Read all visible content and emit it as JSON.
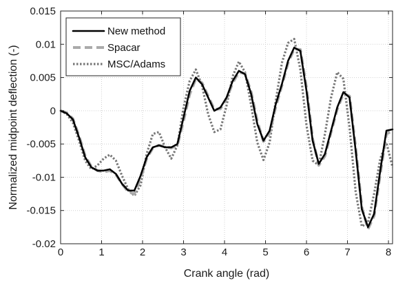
{
  "chart_data": {
    "type": "line",
    "title": "",
    "xlabel": "Crank angle (rad)",
    "ylabel": "Normalized midpoint deflection (-)",
    "xlim": [
      0,
      8.1
    ],
    "ylim": [
      -0.02,
      0.015
    ],
    "xticks": [
      0,
      1,
      2,
      3,
      4,
      5,
      6,
      7,
      8
    ],
    "xtick_labels": [
      "0",
      "1",
      "2",
      "3",
      "4",
      "5",
      "6",
      "7",
      "8"
    ],
    "yticks": [
      -0.02,
      -0.015,
      -0.01,
      -0.005,
      0,
      0.005,
      0.01,
      0.015
    ],
    "ytick_labels": [
      "-0.02",
      "-0.015",
      "-0.01",
      "-0.005",
      "0",
      "0.005",
      "0.01",
      "0.015"
    ],
    "grid": true,
    "legend_position": "top-left",
    "series": [
      {
        "name": "New method",
        "color": "#000000",
        "style": "solid",
        "x": [
          0,
          0.15,
          0.3,
          0.45,
          0.6,
          0.75,
          0.9,
          1.05,
          1.2,
          1.35,
          1.5,
          1.65,
          1.8,
          1.95,
          2.1,
          2.25,
          2.4,
          2.55,
          2.7,
          2.85,
          3.0,
          3.15,
          3.3,
          3.45,
          3.6,
          3.75,
          3.9,
          4.05,
          4.2,
          4.35,
          4.5,
          4.65,
          4.8,
          4.95,
          5.1,
          5.25,
          5.4,
          5.55,
          5.7,
          5.85,
          6.0,
          6.15,
          6.3,
          6.45,
          6.6,
          6.75,
          6.9,
          7.05,
          7.2,
          7.35,
          7.5,
          7.65,
          7.8,
          7.95,
          8.1
        ],
        "y": [
          0,
          -0.0004,
          -0.0013,
          -0.004,
          -0.007,
          -0.0085,
          -0.009,
          -0.009,
          -0.0088,
          -0.0095,
          -0.011,
          -0.012,
          -0.012,
          -0.0098,
          -0.007,
          -0.0055,
          -0.0052,
          -0.0055,
          -0.0055,
          -0.005,
          -0.001,
          0.003,
          0.005,
          0.004,
          0.002,
          0.0,
          0.0005,
          0.002,
          0.0045,
          0.006,
          0.0055,
          0.0025,
          -0.002,
          -0.0045,
          -0.003,
          0.001,
          0.004,
          0.0075,
          0.0095,
          0.009,
          0.003,
          -0.0045,
          -0.008,
          -0.0065,
          -0.003,
          0.0005,
          0.0028,
          0.002,
          -0.006,
          -0.0148,
          -0.0175,
          -0.0155,
          -0.009,
          -0.003,
          -0.0028
        ]
      },
      {
        "name": "Spacar",
        "color": "#aaaaaa",
        "style": "dashed",
        "x": [
          0,
          0.15,
          0.3,
          0.45,
          0.6,
          0.75,
          0.9,
          1.05,
          1.2,
          1.35,
          1.5,
          1.65,
          1.8,
          1.95,
          2.1,
          2.25,
          2.4,
          2.55,
          2.7,
          2.85,
          3.0,
          3.15,
          3.3,
          3.45,
          3.6,
          3.75,
          3.9,
          4.05,
          4.2,
          4.35,
          4.5,
          4.65,
          4.8,
          4.95,
          5.1,
          5.25,
          5.4,
          5.55,
          5.7,
          5.85,
          6.0,
          6.15,
          6.3,
          6.45,
          6.6,
          6.75,
          6.9,
          7.05,
          7.2,
          7.35,
          7.5,
          7.65,
          7.8,
          7.95,
          8.1
        ],
        "y": [
          0,
          -0.0003,
          -0.0012,
          -0.0038,
          -0.0068,
          -0.0084,
          -0.009,
          -0.0092,
          -0.009,
          -0.0096,
          -0.011,
          -0.0122,
          -0.0125,
          -0.0102,
          -0.0072,
          -0.0056,
          -0.0052,
          -0.0054,
          -0.0056,
          -0.0052,
          -0.0015,
          0.0025,
          0.0048,
          0.0042,
          0.0022,
          0.0002,
          0.0003,
          0.0018,
          0.0042,
          0.0058,
          0.0056,
          0.0028,
          -0.0016,
          -0.0046,
          -0.0034,
          0.0006,
          0.0038,
          0.0072,
          0.0093,
          0.0092,
          0.0035,
          -0.0042,
          -0.0082,
          -0.0068,
          -0.0032,
          0.0002,
          0.0026,
          0.0022,
          -0.0055,
          -0.0145,
          -0.0178,
          -0.0158,
          -0.0095,
          -0.0035,
          -0.003
        ]
      },
      {
        "name": "MSC/Adams",
        "color": "#777777",
        "style": "dotted",
        "x": [
          0,
          0.15,
          0.3,
          0.45,
          0.6,
          0.75,
          0.9,
          1.05,
          1.2,
          1.35,
          1.5,
          1.65,
          1.8,
          1.95,
          2.1,
          2.25,
          2.4,
          2.55,
          2.7,
          2.85,
          3.0,
          3.15,
          3.3,
          3.45,
          3.6,
          3.75,
          3.9,
          4.05,
          4.2,
          4.35,
          4.5,
          4.65,
          4.8,
          4.95,
          5.1,
          5.25,
          5.4,
          5.55,
          5.7,
          5.85,
          6.0,
          6.15,
          6.3,
          6.45,
          6.6,
          6.75,
          6.9,
          7.05,
          7.2,
          7.35,
          7.5,
          7.65,
          7.8,
          7.95,
          8.1
        ],
        "y": [
          0,
          -0.0005,
          -0.0018,
          -0.0045,
          -0.0075,
          -0.0088,
          -0.0082,
          -0.0072,
          -0.0066,
          -0.0075,
          -0.0098,
          -0.0118,
          -0.0128,
          -0.0112,
          -0.0065,
          -0.0035,
          -0.0032,
          -0.0055,
          -0.0072,
          -0.0052,
          0.0005,
          0.0045,
          0.0062,
          0.0038,
          -0.0005,
          -0.0032,
          -0.0028,
          0.0008,
          0.0052,
          0.0074,
          0.0058,
          0.0008,
          -0.0048,
          -0.0074,
          -0.0048,
          0.0015,
          0.0072,
          0.0102,
          0.0108,
          0.0062,
          -0.0022,
          -0.0075,
          -0.0082,
          -0.0035,
          0.002,
          0.0058,
          0.0048,
          -0.0025,
          -0.0122,
          -0.0174,
          -0.0168,
          -0.0125,
          -0.0072,
          -0.0048,
          -0.0085
        ]
      }
    ]
  }
}
